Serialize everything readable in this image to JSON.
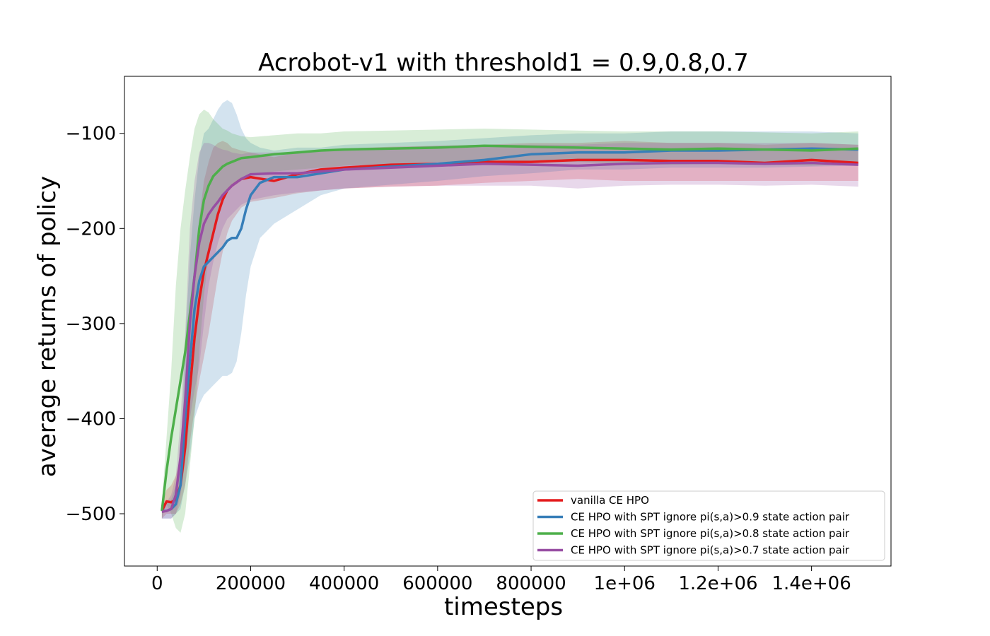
{
  "chart_data": {
    "type": "line",
    "title": "Acrobot-v1 with threshold1 = 0.9,0.8,0.7",
    "xlabel": "timesteps",
    "ylabel": "average returns of policy",
    "xlim": [
      -70000,
      1570000
    ],
    "ylim": [
      -555,
      -40
    ],
    "x_ticks": [
      {
        "value": 0,
        "label": "0"
      },
      {
        "value": 200000,
        "label": "200000"
      },
      {
        "value": 400000,
        "label": "400000"
      },
      {
        "value": 600000,
        "label": "600000"
      },
      {
        "value": 800000,
        "label": "800000"
      },
      {
        "value": 1000000,
        "label": "1e+06"
      },
      {
        "value": 1200000,
        "label": "1.2e+06"
      },
      {
        "value": 1400000,
        "label": "1.4e+06"
      }
    ],
    "y_ticks": [
      {
        "value": -100,
        "label": "−100"
      },
      {
        "value": -200,
        "label": "−200"
      },
      {
        "value": -300,
        "label": "−300"
      },
      {
        "value": -400,
        "label": "−400"
      },
      {
        "value": -500,
        "label": "−500"
      }
    ],
    "grid": false,
    "legend": {
      "position": "bottom-right"
    },
    "series": [
      {
        "name": "vanilla CE HPO",
        "color": "#e41a1c",
        "x": [
          10000,
          20000,
          30000,
          40000,
          50000,
          60000,
          70000,
          80000,
          90000,
          100000,
          110000,
          120000,
          130000,
          140000,
          150000,
          160000,
          180000,
          200000,
          250000,
          300000,
          350000,
          400000,
          500000,
          600000,
          700000,
          800000,
          900000,
          1000000,
          1100000,
          1200000,
          1300000,
          1400000,
          1500000
        ],
        "y": [
          -497,
          -487,
          -488,
          -485,
          -470,
          -430,
          -370,
          -315,
          -275,
          -245,
          -225,
          -205,
          -185,
          -170,
          -160,
          -155,
          -148,
          -146,
          -150,
          -143,
          -138,
          -136,
          -133,
          -132,
          -130,
          -130,
          -128,
          -128,
          -129,
          -129,
          -131,
          -128,
          -131
        ],
        "lower": [
          -505,
          -500,
          -500,
          -500,
          -490,
          -470,
          -425,
          -390,
          -360,
          -335,
          -310,
          -280,
          -250,
          -225,
          -205,
          -192,
          -178,
          -172,
          -168,
          -163,
          -160,
          -158,
          -156,
          -155,
          -152,
          -150,
          -148,
          -150,
          -150,
          -150,
          -150,
          -150,
          -150
        ],
        "upper": [
          -490,
          -475,
          -470,
          -460,
          -440,
          -390,
          -310,
          -240,
          -190,
          -150,
          -130,
          -115,
          -110,
          -108,
          -110,
          -115,
          -118,
          -120,
          -125,
          -120,
          -118,
          -116,
          -114,
          -113,
          -112,
          -110,
          -110,
          -108,
          -110,
          -110,
          -112,
          -110,
          -112
        ]
      },
      {
        "name": "CE HPO with SPT ignore pi(s,a)>0.9 state action pair",
        "color": "#377eb8",
        "x": [
          10000,
          20000,
          30000,
          40000,
          50000,
          60000,
          70000,
          80000,
          90000,
          100000,
          110000,
          120000,
          130000,
          140000,
          150000,
          160000,
          170000,
          180000,
          190000,
          200000,
          220000,
          250000,
          300000,
          350000,
          400000,
          500000,
          600000,
          700000,
          800000,
          900000,
          1000000,
          1100000,
          1200000,
          1300000,
          1400000,
          1500000
        ],
        "y": [
          -497,
          -497,
          -495,
          -490,
          -470,
          -400,
          -340,
          -285,
          -255,
          -240,
          -235,
          -230,
          -225,
          -220,
          -213,
          -210,
          -210,
          -200,
          -180,
          -165,
          -152,
          -146,
          -146,
          -142,
          -138,
          -135,
          -132,
          -128,
          -122,
          -120,
          -120,
          -118,
          -118,
          -117,
          -116,
          -117
        ],
        "lower": [
          -505,
          -505,
          -505,
          -500,
          -495,
          -470,
          -440,
          -400,
          -385,
          -375,
          -370,
          -365,
          -360,
          -355,
          -355,
          -352,
          -340,
          -310,
          -270,
          -240,
          -210,
          -195,
          -180,
          -165,
          -158,
          -154,
          -150,
          -145,
          -142,
          -138,
          -138,
          -136,
          -136,
          -136,
          -135,
          -134
        ],
        "upper": [
          -490,
          -488,
          -485,
          -470,
          -440,
          -320,
          -230,
          -170,
          -125,
          -100,
          -95,
          -85,
          -75,
          -68,
          -65,
          -68,
          -80,
          -95,
          -105,
          -110,
          -115,
          -118,
          -115,
          -115,
          -112,
          -110,
          -108,
          -105,
          -102,
          -100,
          -100,
          -98,
          -98,
          -98,
          -98,
          -100
        ]
      },
      {
        "name": "CE HPO with SPT ignore pi(s,a)>0.8 state action pair",
        "color": "#4daf4a",
        "x": [
          10000,
          20000,
          30000,
          40000,
          50000,
          60000,
          70000,
          80000,
          90000,
          100000,
          110000,
          120000,
          130000,
          140000,
          150000,
          160000,
          180000,
          200000,
          250000,
          300000,
          350000,
          400000,
          500000,
          600000,
          700000,
          800000,
          900000,
          1000000,
          1100000,
          1200000,
          1300000,
          1400000,
          1500000
        ],
        "y": [
          -497,
          -455,
          -420,
          -390,
          -360,
          -330,
          -290,
          -250,
          -200,
          -170,
          -155,
          -145,
          -140,
          -135,
          -132,
          -130,
          -126,
          -125,
          -122,
          -120,
          -118,
          -117,
          -116,
          -115,
          -113,
          -114,
          -115,
          -116,
          -117,
          -116,
          -117,
          -118,
          -116
        ],
        "lower": [
          -505,
          -490,
          -500,
          -515,
          -520,
          -500,
          -450,
          -400,
          -330,
          -270,
          -230,
          -200,
          -180,
          -170,
          -160,
          -155,
          -148,
          -145,
          -140,
          -138,
          -136,
          -134,
          -132,
          -130,
          -130,
          -130,
          -130,
          -132,
          -133,
          -132,
          -133,
          -134,
          -132
        ],
        "upper": [
          -490,
          -420,
          -350,
          -260,
          -200,
          -160,
          -125,
          -95,
          -80,
          -75,
          -78,
          -85,
          -90,
          -95,
          -97,
          -100,
          -103,
          -104,
          -102,
          -100,
          -100,
          -98,
          -97,
          -96,
          -95,
          -96,
          -97,
          -98,
          -98,
          -98,
          -99,
          -100,
          -98
        ]
      },
      {
        "name": "CE HPO with SPT ignore pi(s,a)>0.7 state action pair",
        "color": "#984ea3",
        "x": [
          10000,
          20000,
          30000,
          40000,
          50000,
          60000,
          70000,
          80000,
          90000,
          100000,
          110000,
          120000,
          130000,
          140000,
          150000,
          160000,
          180000,
          200000,
          250000,
          300000,
          350000,
          400000,
          500000,
          600000,
          700000,
          800000,
          900000,
          1000000,
          1100000,
          1200000,
          1300000,
          1400000,
          1500000
        ],
        "y": [
          -498,
          -497,
          -495,
          -480,
          -440,
          -380,
          -300,
          -250,
          -215,
          -195,
          -185,
          -178,
          -172,
          -165,
          -160,
          -155,
          -148,
          -143,
          -142,
          -142,
          -140,
          -138,
          -136,
          -134,
          -132,
          -133,
          -134,
          -132,
          -131,
          -131,
          -132,
          -131,
          -133
        ],
        "lower": [
          -505,
          -505,
          -505,
          -500,
          -480,
          -445,
          -400,
          -370,
          -345,
          -300,
          -260,
          -235,
          -215,
          -200,
          -190,
          -185,
          -175,
          -170,
          -165,
          -162,
          -160,
          -158,
          -156,
          -155,
          -155,
          -155,
          -158,
          -155,
          -154,
          -154,
          -155,
          -154,
          -156
        ],
        "upper": [
          -490,
          -488,
          -480,
          -460,
          -400,
          -310,
          -200,
          -150,
          -120,
          -110,
          -110,
          -112,
          -115,
          -117,
          -118,
          -120,
          -122,
          -120,
          -120,
          -120,
          -118,
          -117,
          -115,
          -113,
          -112,
          -112,
          -112,
          -110,
          -110,
          -110,
          -110,
          -110,
          -112
        ]
      }
    ]
  }
}
